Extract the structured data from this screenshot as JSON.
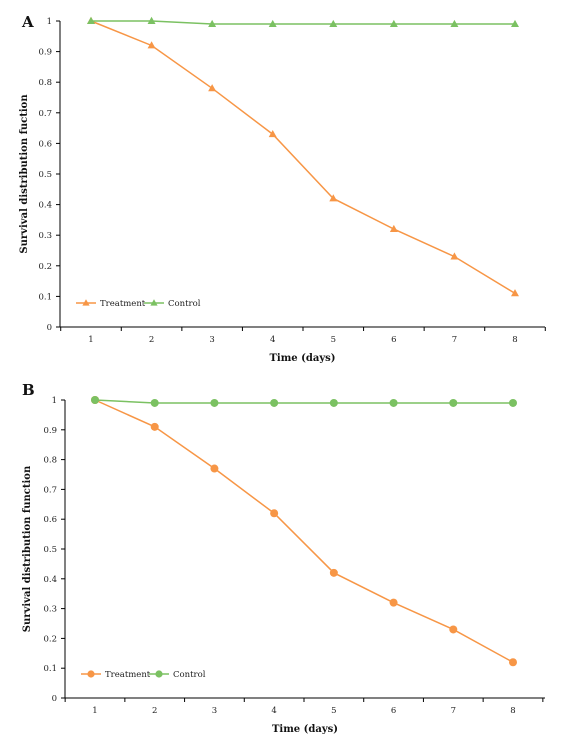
{
  "chart_data": [
    {
      "panel": "A",
      "type": "line",
      "xlabel": "Time (days)",
      "ylabel": "Survival distribution fuction",
      "x": [
        1,
        2,
        3,
        4,
        5,
        6,
        7,
        8
      ],
      "ylim": [
        0,
        1
      ],
      "yticks": [
        "0",
        "0.1",
        "0.2",
        "0.3",
        "0.4",
        "0.5",
        "0.6",
        "0.7",
        "0.8",
        "0.9",
        "1"
      ],
      "marker": "triangle",
      "legend_position": "bottom-left",
      "grid": false,
      "series": [
        {
          "name": "Treatment",
          "color": "#F79646",
          "values": [
            1.0,
            0.92,
            0.78,
            0.63,
            0.42,
            0.32,
            0.23,
            0.11
          ]
        },
        {
          "name": "Control",
          "color": "#7BC162",
          "values": [
            1.0,
            1.0,
            0.99,
            0.99,
            0.99,
            0.99,
            0.99,
            0.99
          ]
        }
      ]
    },
    {
      "panel": "B",
      "type": "line",
      "xlabel": "Time (days)",
      "ylabel": "Survival distribution function",
      "x": [
        1,
        2,
        3,
        4,
        5,
        6,
        7,
        8
      ],
      "ylim": [
        0,
        1
      ],
      "yticks": [
        "0",
        "0.1",
        "0.2",
        "0.3",
        "0.4",
        "0.5",
        "0.6",
        "0.7",
        "0.8",
        "0.9",
        "1"
      ],
      "marker": "circle",
      "legend_position": "bottom-left",
      "grid": false,
      "series": [
        {
          "name": "Treatment",
          "color": "#F79646",
          "values": [
            1.0,
            0.91,
            0.77,
            0.62,
            0.42,
            0.32,
            0.23,
            0.12
          ]
        },
        {
          "name": "Control",
          "color": "#7BC162",
          "values": [
            1.0,
            0.99,
            0.99,
            0.99,
            0.99,
            0.99,
            0.99,
            0.99
          ]
        }
      ]
    }
  ]
}
